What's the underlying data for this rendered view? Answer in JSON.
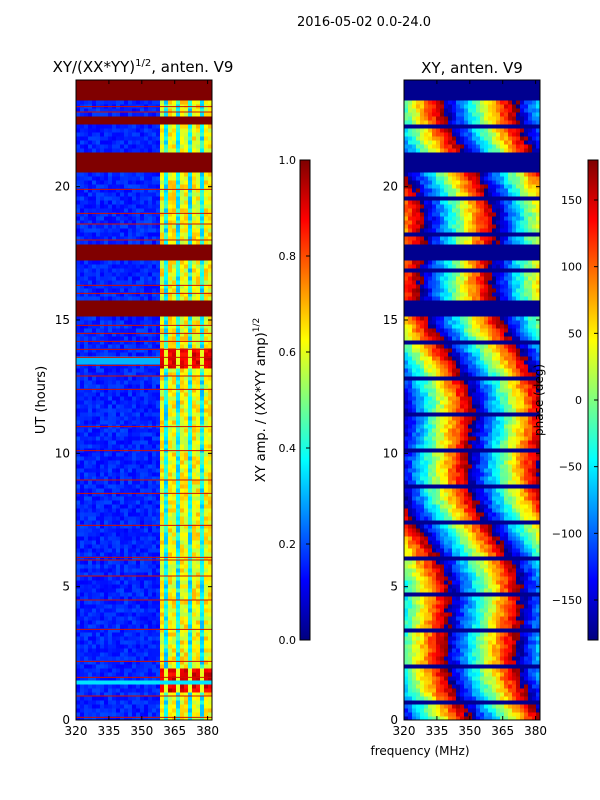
{
  "suptitle": "2016-05-02 0.0-24.0",
  "colors": {
    "background": "#ffffff",
    "axis": "#000000",
    "flag_red": "#800000",
    "stripe_red": "#d01000",
    "dark_blue": "#00008f",
    "jet": [
      "#00007f",
      "#0000ff",
      "#007fff",
      "#00ffff",
      "#7fff7f",
      "#ffff00",
      "#ff7f00",
      "#ff0000",
      "#7f0000"
    ]
  },
  "chart_data": [
    {
      "type": "heatmap",
      "name": "amplitude",
      "title_main": "XY/(XX*YY)",
      "title_exp": "1/2",
      "title_suffix": ", anten. V9",
      "xlabel": "",
      "ylabel": "UT (hours)",
      "xlim": [
        320,
        382
      ],
      "ylim": [
        0,
        24
      ],
      "xticks": [
        320,
        335,
        350,
        365,
        380
      ],
      "xtick_labels": [
        "320",
        "335",
        "350",
        "365",
        "380"
      ],
      "yticks": [
        0,
        5,
        10,
        15,
        20
      ],
      "ytick_labels": [
        "0",
        "5",
        "10",
        "15",
        "20"
      ],
      "flagged_bands_hours": [
        [
          23.3,
          24.0
        ],
        [
          22.3,
          22.6
        ],
        [
          20.6,
          21.3
        ],
        [
          17.2,
          17.9
        ],
        [
          15.2,
          15.7
        ]
      ],
      "thin_flag_lines_hours": [
        0.1,
        0.9,
        1.6,
        2.2,
        3.4,
        4.5,
        5.4,
        6.0,
        6.1,
        7.3,
        8.5,
        9.0,
        10.1,
        11.0,
        12.4,
        12.9,
        13.3,
        13.6,
        13.9,
        14.2,
        14.5,
        14.8,
        16.0,
        16.3,
        18.0,
        18.6,
        19.0,
        19.9,
        22.8,
        23.0
      ],
      "active_channel_range_MHz": [
        359,
        382
      ],
      "high_amp_hours": [
        [
          1.1,
          1.9
        ],
        [
          13.2,
          13.9
        ]
      ],
      "colorbar": {
        "min": 0.0,
        "max": 1.0,
        "ticks": [
          0.0,
          0.2,
          0.4,
          0.6,
          0.8,
          1.0
        ],
        "tick_labels": [
          "0.0",
          "0.2",
          "0.4",
          "0.6",
          "0.8",
          "1.0"
        ],
        "label_main": "XY amp. / (XX*YY amp)",
        "label_exp": "1/2"
      }
    },
    {
      "type": "heatmap",
      "name": "phase",
      "title_main": "XY, anten. V9",
      "xlabel": "frequency (MHz)",
      "ylabel": "",
      "xlim": [
        320,
        382
      ],
      "ylim": [
        0,
        24
      ],
      "xticks": [
        320,
        335,
        350,
        365,
        380
      ],
      "xtick_labels": [
        "320",
        "335",
        "350",
        "365",
        "380"
      ],
      "yticks": [
        0,
        5,
        10,
        15,
        20
      ],
      "ytick_labels": [
        "0",
        "5",
        "10",
        "15",
        "20"
      ],
      "flagged_bands_hours": [
        [
          23.3,
          24.0
        ],
        [
          20.6,
          21.3
        ],
        [
          17.2,
          17.9
        ],
        [
          15.2,
          15.7
        ]
      ],
      "phase_drift_deg_per_MHz": 11,
      "colorbar": {
        "min": -180,
        "max": 180,
        "ticks": [
          -150,
          -100,
          -50,
          0,
          50,
          100,
          150
        ],
        "tick_labels": [
          "−150",
          "−100",
          "−50",
          "0",
          "50",
          "100",
          "150"
        ],
        "label": "phase (deg)"
      }
    }
  ]
}
